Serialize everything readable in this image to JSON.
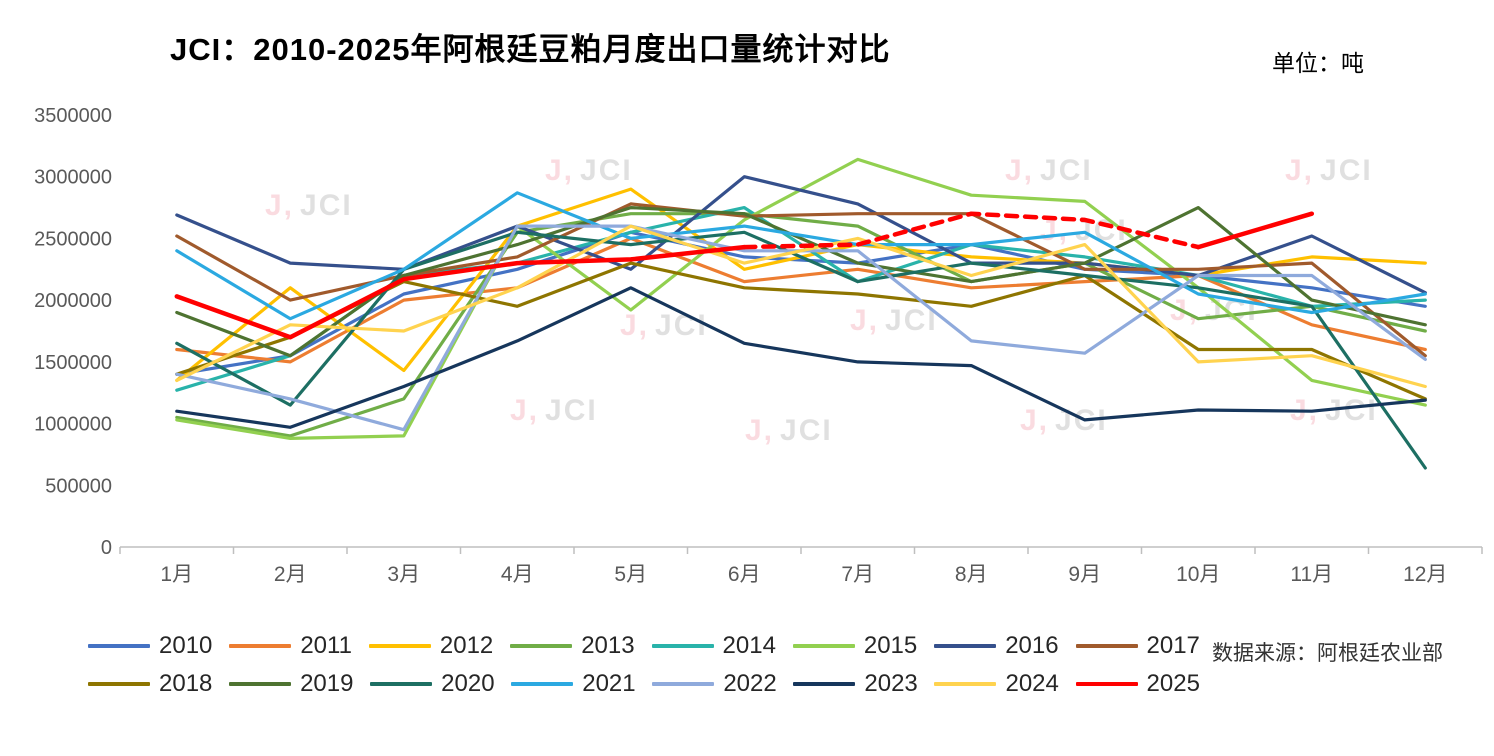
{
  "chart_data": {
    "type": "line",
    "title": "JCI：2010-2025年阿根廷豆粕月度出口量统计对比",
    "unit_label": "单位：吨",
    "source_note": "数据来源：阿根廷农业部",
    "watermark_text": "JCI",
    "categories": [
      "1月",
      "2月",
      "3月",
      "4月",
      "5月",
      "6月",
      "7月",
      "8月",
      "9月",
      "10月",
      "11月",
      "12月"
    ],
    "ylim": [
      0,
      3500000
    ],
    "ytick_step": 500000,
    "grid": false,
    "legend_position": "bottom",
    "axis_color": "#bfbfbf",
    "tick_label_color": "#595959",
    "series": [
      {
        "name": "2010",
        "color": "#4472c4",
        "values": [
          1400000,
          1550000,
          2050000,
          2250000,
          2550000,
          2350000,
          2300000,
          2450000,
          2250000,
          2200000,
          2100000,
          1950000
        ]
      },
      {
        "name": "2011",
        "color": "#ed7d31",
        "values": [
          1600000,
          1500000,
          2000000,
          2100000,
          2500000,
          2150000,
          2250000,
          2100000,
          2150000,
          2200000,
          1800000,
          1600000
        ]
      },
      {
        "name": "2012",
        "color": "#ffc000",
        "values": [
          1350000,
          2100000,
          1430000,
          2600000,
          2900000,
          2250000,
          2450000,
          2350000,
          2300000,
          2200000,
          2350000,
          2300000
        ]
      },
      {
        "name": "2013",
        "color": "#70ad47",
        "values": [
          1050000,
          900000,
          1200000,
          2550000,
          2700000,
          2700000,
          2600000,
          2150000,
          2300000,
          1850000,
          1950000,
          1750000
        ]
      },
      {
        "name": "2014",
        "color": "#29b3aa",
        "values": [
          1270000,
          1550000,
          2200000,
          2300000,
          2550000,
          2750000,
          2150000,
          2450000,
          2350000,
          2200000,
          1950000,
          2000000
        ]
      },
      {
        "name": "2015",
        "color": "#92d050",
        "values": [
          1030000,
          880000,
          900000,
          2600000,
          1920000,
          2650000,
          3140000,
          2850000,
          2800000,
          2100000,
          1350000,
          1150000
        ]
      },
      {
        "name": "2016",
        "color": "#35508c",
        "values": [
          2690000,
          2300000,
          2250000,
          2600000,
          2250000,
          3000000,
          2780000,
          2300000,
          2300000,
          2200000,
          2520000,
          2060000
        ]
      },
      {
        "name": "2017",
        "color": "#a05a2c",
        "values": [
          2520000,
          2000000,
          2200000,
          2350000,
          2780000,
          2680000,
          2700000,
          2700000,
          2250000,
          2250000,
          2300000,
          1550000
        ]
      },
      {
        "name": "2018",
        "color": "#8e7500",
        "values": [
          1400000,
          1700000,
          2150000,
          1950000,
          2300000,
          2100000,
          2050000,
          1950000,
          2200000,
          1600000,
          1600000,
          1200000
        ]
      },
      {
        "name": "2019",
        "color": "#4e7331",
        "values": [
          1900000,
          1550000,
          2200000,
          2450000,
          2750000,
          2700000,
          2300000,
          2150000,
          2300000,
          2750000,
          2000000,
          1800000
        ]
      },
      {
        "name": "2020",
        "color": "#1d6f63",
        "values": [
          1650000,
          1150000,
          2250000,
          2550000,
          2450000,
          2550000,
          2150000,
          2300000,
          2200000,
          2100000,
          1950000,
          640000
        ]
      },
      {
        "name": "2021",
        "color": "#2ba9e1",
        "values": [
          2400000,
          1850000,
          2250000,
          2870000,
          2500000,
          2600000,
          2450000,
          2450000,
          2550000,
          2050000,
          1900000,
          2050000
        ]
      },
      {
        "name": "2022",
        "color": "#8faadc",
        "values": [
          1400000,
          1200000,
          950000,
          2600000,
          2600000,
          2400000,
          2400000,
          1670000,
          1570000,
          2200000,
          2200000,
          1520000
        ]
      },
      {
        "name": "2023",
        "color": "#16365c",
        "values": [
          1100000,
          970000,
          1300000,
          1670000,
          2100000,
          1650000,
          1500000,
          1470000,
          1030000,
          1110000,
          1100000,
          1190000
        ]
      },
      {
        "name": "2024",
        "color": "#ffd34f",
        "values": [
          1350000,
          1800000,
          1750000,
          2100000,
          2600000,
          2300000,
          2500000,
          2200000,
          2450000,
          1500000,
          1550000,
          1300000
        ]
      },
      {
        "name": "2025",
        "color": "#ff0000",
        "width": 4.5,
        "dash_from": 5,
        "dash_to": 9,
        "values": [
          2030000,
          1700000,
          2170000,
          2300000,
          2330000,
          2430000,
          2450000,
          2700000,
          2650000,
          2430000,
          2700000,
          null
        ]
      }
    ]
  }
}
